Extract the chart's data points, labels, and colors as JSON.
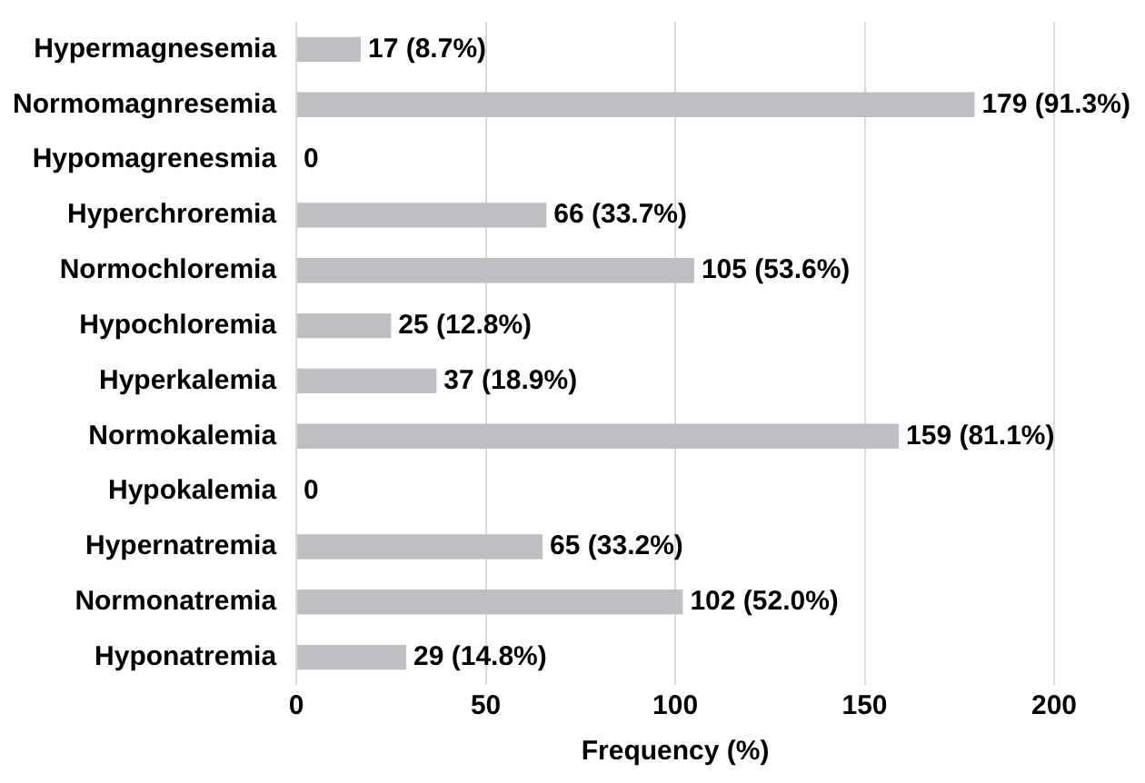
{
  "chart_data": {
    "type": "bar",
    "orientation": "horizontal",
    "xlabel": "Frequency (%)",
    "categories": [
      "Hypermagnesemia",
      "Normomagnresemia",
      "Hypomagrenesmia",
      "Hyperchroremia",
      "Normochloremia",
      "Hypochloremia",
      "Hyperkalemia",
      "Normokalemia",
      "Hypokalemia",
      "Hypernatremia",
      "Normonatremia",
      "Hyponatremia"
    ],
    "values": [
      17,
      179,
      0,
      66,
      105,
      25,
      37,
      159,
      0,
      65,
      102,
      29
    ],
    "value_labels": [
      "17 (8.7%)",
      "179 (91.3%)",
      "0",
      "66 (33.7%)",
      "105 (53.6%)",
      "25 (12.8%)",
      "37 (18.9%)",
      "159 (81.1%)",
      "0",
      "65 (33.2%)",
      "102 (52.0%)",
      "29 (14.8%)"
    ],
    "color": "#bfbfc3",
    "xlim": [
      0,
      200
    ],
    "xticks": [
      0,
      50,
      100,
      150,
      200
    ],
    "grid": "x",
    "legend": false
  }
}
